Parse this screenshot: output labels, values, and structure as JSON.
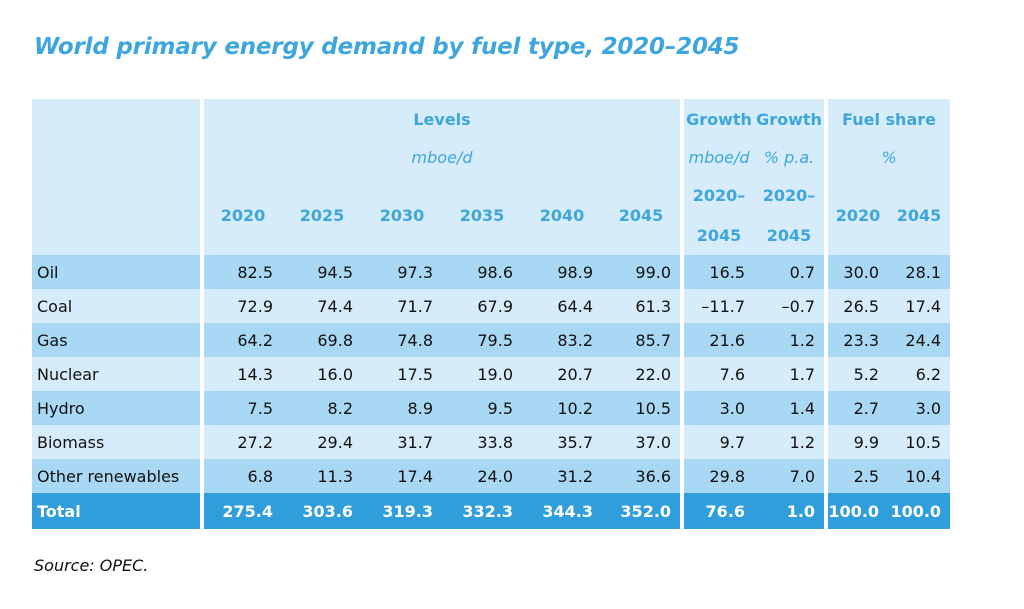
{
  "title": "World primary energy demand by fuel type, 2020–2045",
  "header": {
    "levels": "Levels",
    "levels_unit": "mboe/d",
    "growth1": "Growth",
    "growth1_unit": "mboe/d",
    "growth2": "Growth",
    "growth2_unit": "% p.a.",
    "period_start": "2020–",
    "period_end": "2045",
    "share": "Fuel share",
    "share_unit": "%",
    "years": [
      "2020",
      "2025",
      "2030",
      "2035",
      "2040",
      "2045"
    ],
    "share_years": [
      "2020",
      "2045"
    ]
  },
  "rows": [
    {
      "label": "Oil",
      "values": [
        "82.5",
        "94.5",
        "97.3",
        "98.6",
        "98.9",
        "99.0"
      ],
      "growth": "16.5",
      "growth_pa": "0.7",
      "share": [
        "30.0",
        "28.1"
      ]
    },
    {
      "label": "Coal",
      "values": [
        "72.9",
        "74.4",
        "71.7",
        "67.9",
        "64.4",
        "61.3"
      ],
      "growth": "–11.7",
      "growth_pa": "–0.7",
      "share": [
        "26.5",
        "17.4"
      ]
    },
    {
      "label": "Gas",
      "values": [
        "64.2",
        "69.8",
        "74.8",
        "79.5",
        "83.2",
        "85.7"
      ],
      "growth": "21.6",
      "growth_pa": "1.2",
      "share": [
        "23.3",
        "24.4"
      ]
    },
    {
      "label": "Nuclear",
      "values": [
        "14.3",
        "16.0",
        "17.5",
        "19.0",
        "20.7",
        "22.0"
      ],
      "growth": "7.6",
      "growth_pa": "1.7",
      "share": [
        "5.2",
        "6.2"
      ]
    },
    {
      "label": "Hydro",
      "values": [
        "7.5",
        "8.2",
        "8.9",
        "9.5",
        "10.2",
        "10.5"
      ],
      "growth": "3.0",
      "growth_pa": "1.4",
      "share": [
        "2.7",
        "3.0"
      ]
    },
    {
      "label": "Biomass",
      "values": [
        "27.2",
        "29.4",
        "31.7",
        "33.8",
        "35.7",
        "37.0"
      ],
      "growth": "9.7",
      "growth_pa": "1.2",
      "share": [
        "9.9",
        "10.5"
      ]
    },
    {
      "label": "Other renewables",
      "values": [
        "6.8",
        "11.3",
        "17.4",
        "24.0",
        "31.2",
        "36.6"
      ],
      "growth": "29.8",
      "growth_pa": "7.0",
      "share": [
        "2.5",
        "10.4"
      ]
    },
    {
      "label": "Total",
      "values": [
        "275.4",
        "303.6",
        "319.3",
        "332.3",
        "344.3",
        "352.0"
      ],
      "growth": "76.6",
      "growth_pa": "1.0",
      "share": [
        "100.0",
        "100.0"
      ]
    }
  ],
  "source": "Source: OPEC.",
  "colors": {
    "title": "#3ea6dc",
    "header_bg": "#d6ecfa",
    "row_dark": "#a9d8f5",
    "row_light": "#d6ecfa",
    "total_bg": "#2f9edb"
  }
}
